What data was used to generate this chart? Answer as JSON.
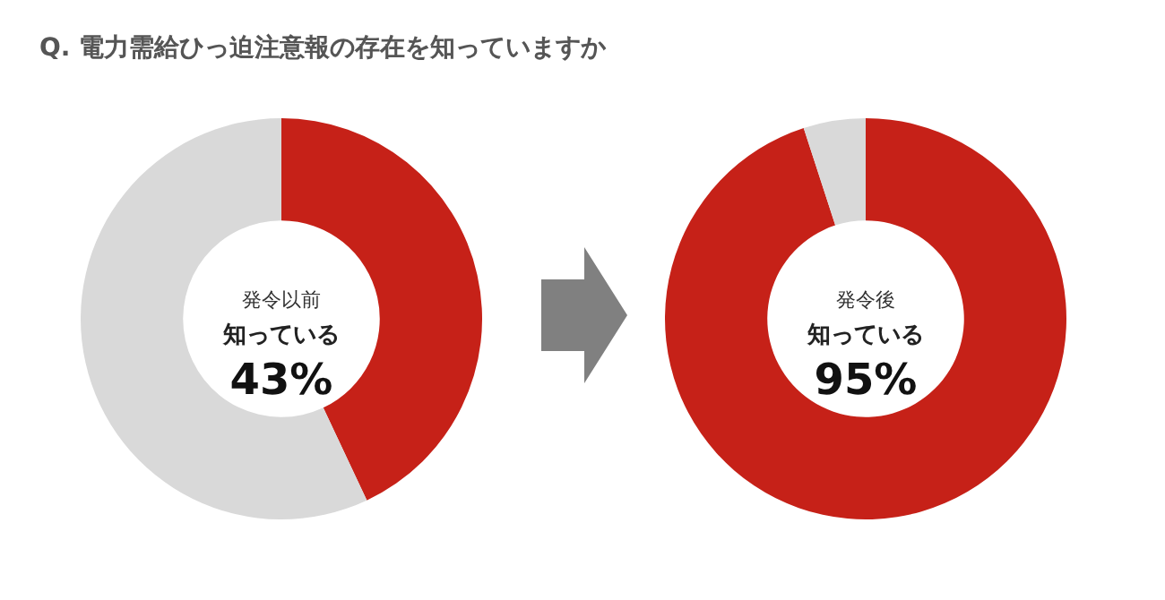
{
  "chart_data": [
    {
      "type": "donut",
      "title": "Q. 電力需給ひっ迫注意報の存在を知っていますか",
      "subtitle": "発令以前",
      "annotations": [
        "知っている",
        "43%"
      ],
      "categories": [
        null,
        null
      ],
      "values": [
        43,
        57
      ],
      "colors": [
        "#c62118",
        "#d9d9d9"
      ]
    },
    {
      "type": "donut",
      "subtitle": "発令後",
      "annotations": [
        "知っている",
        "95%"
      ],
      "categories": [
        null,
        null
      ],
      "values": [
        95,
        5
      ],
      "colors": [
        "#c62118",
        "#d9d9d9"
      ]
    }
  ]
}
